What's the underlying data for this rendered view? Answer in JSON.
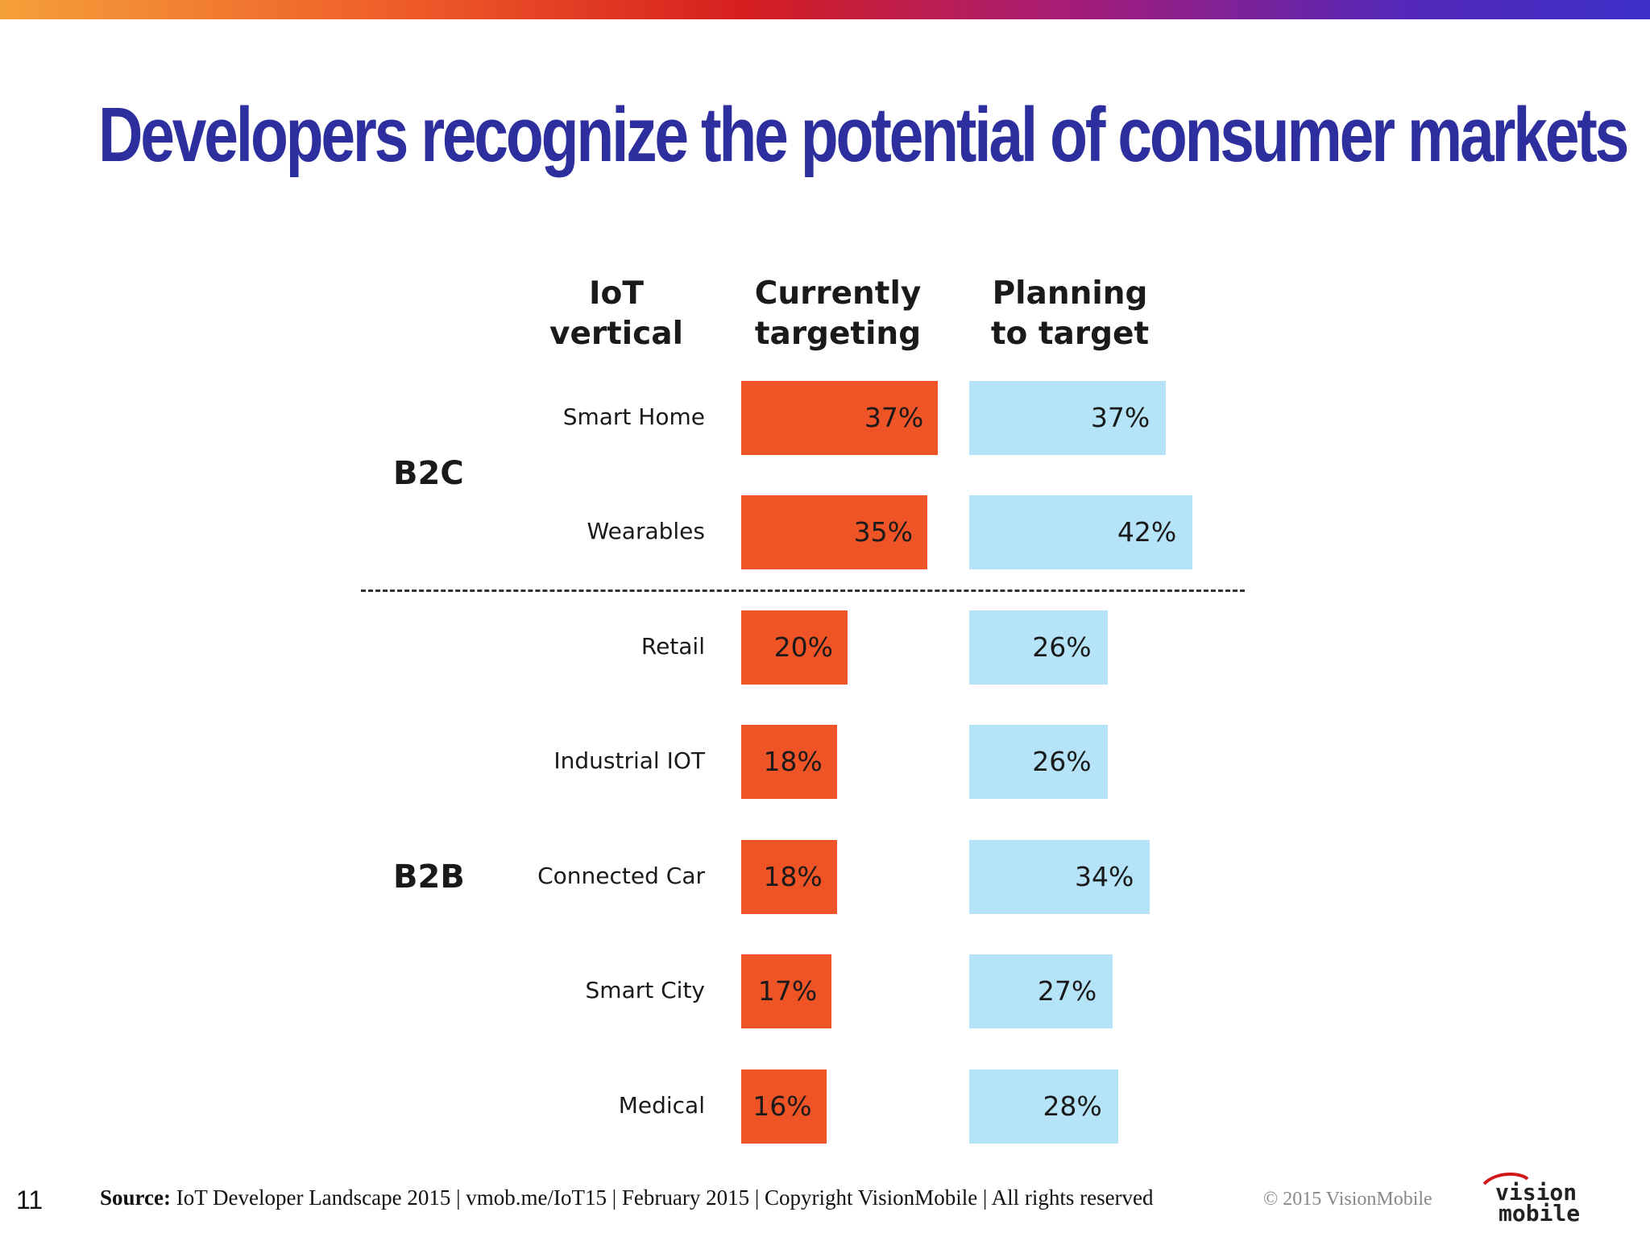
{
  "title": "Developers recognize the potential of consumer markets",
  "chart_data": {
    "type": "bar",
    "headers": {
      "vertical": "IoT vertical",
      "current": "Currently\ntargeting",
      "planning": "Planning\nto target"
    },
    "groups": [
      {
        "name": "B2C",
        "categories": [
          "Smart Home",
          "Wearables"
        ]
      },
      {
        "name": "B2B",
        "categories": [
          "Retail",
          "Industrial IOT",
          "Connected Car",
          "Smart City",
          "Medical"
        ]
      }
    ],
    "categories": [
      "Smart Home",
      "Wearables",
      "Retail",
      "Industrial IOT",
      "Connected Car",
      "Smart City",
      "Medical"
    ],
    "series": [
      {
        "name": "Currently targeting",
        "values": [
          37,
          35,
          20,
          18,
          18,
          17,
          16
        ],
        "labels": [
          "37%",
          "35%",
          "20%",
          "18%",
          "18%",
          "17%",
          "16%"
        ],
        "color": "#ef5427"
      },
      {
        "name": "Planning to target",
        "values": [
          37,
          42,
          26,
          26,
          34,
          27,
          28
        ],
        "labels": [
          "37%",
          "42%",
          "26%",
          "26%",
          "34%",
          "27%",
          "28%"
        ],
        "color": "#b5e4f8"
      }
    ],
    "unit": "%"
  },
  "footer": {
    "page_number": "11",
    "source_label": "Source:",
    "source_text": " IoT Developer Landscape 2015  |  vmob.me/IoT15  |  February 2015  |  Copyright VisionMobile  |  All rights reserved",
    "copyright": "© 2015 VisionMobile",
    "logo_line1": "vision",
    "logo_line2": "mobile"
  },
  "colors": {
    "title": "#2d2f9e",
    "current": "#ef5427",
    "planning": "#b5e4f8"
  }
}
